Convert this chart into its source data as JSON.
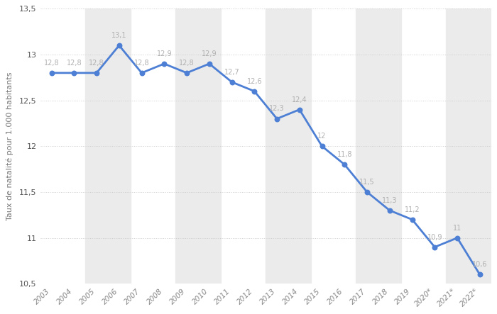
{
  "years": [
    "2003",
    "2004",
    "2005",
    "2006",
    "2007",
    "2008",
    "2009",
    "2010",
    "2011",
    "2012",
    "2013",
    "2014",
    "2015",
    "2016",
    "2017",
    "2018",
    "2019",
    "2020*",
    "2021*",
    "2022*"
  ],
  "values": [
    12.8,
    12.8,
    12.8,
    13.1,
    12.8,
    12.9,
    12.8,
    12.9,
    12.7,
    12.6,
    12.3,
    12.4,
    12.0,
    11.8,
    11.5,
    11.3,
    11.2,
    10.9,
    11.0,
    10.6
  ],
  "labels": [
    "12,8",
    "12,8",
    "12,8",
    "13,1",
    "12,8",
    "12,9",
    "12,8",
    "12,9",
    "12,7",
    "12,6",
    "12,3",
    "12,4",
    "12",
    "11,8",
    "11,5",
    "11,3",
    "11,2",
    "10,9",
    "11",
    "10,6"
  ],
  "line_color": "#4d7fd4",
  "marker_color": "#4d7fd4",
  "background_color": "#ffffff",
  "grid_color": "#cccccc",
  "label_color": "#b0b0b0",
  "ylabel": "Taux de natalité pour 1.000 habitants",
  "ylim": [
    10.5,
    13.5
  ],
  "yticks": [
    10.5,
    11.0,
    11.5,
    12.0,
    12.5,
    13.0,
    13.5
  ],
  "stripe_color": "#ebebeb",
  "figsize": [
    7.0,
    4.43
  ],
  "dpi": 100
}
